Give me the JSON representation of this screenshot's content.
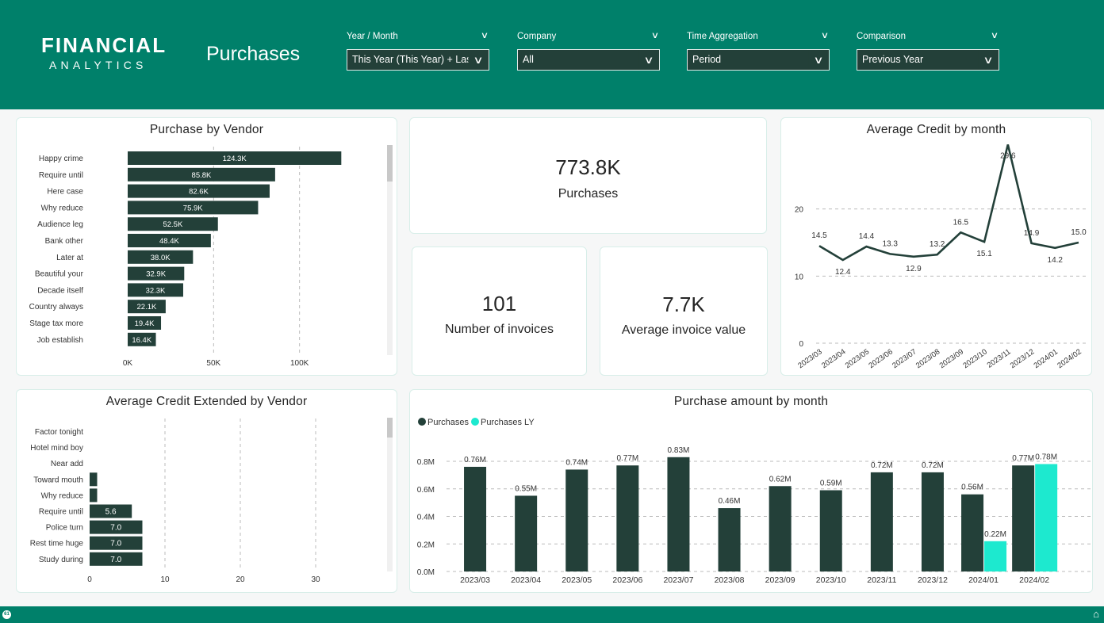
{
  "header": {
    "logo_line1": "FINANCIAL",
    "logo_line2": "ANALYTICS",
    "page_title": "Purchases"
  },
  "slicers": [
    {
      "label": "Year / Month",
      "value": "This Year (This Year) + Las..."
    },
    {
      "label": "Company",
      "value": "All"
    },
    {
      "label": "Time Aggregation",
      "value": "Period"
    },
    {
      "label": "Comparison",
      "value": "Previous Year"
    }
  ],
  "kpis": {
    "purchases": {
      "value": "773.8K",
      "label": "Purchases"
    },
    "invoices": {
      "value": "101",
      "label": "Number of invoices"
    },
    "avg_invoice": {
      "value": "7.7K",
      "label": "Average invoice value"
    }
  },
  "colors": {
    "brand": "#00806a",
    "bar": "#234039",
    "bar_ly": "#1de9cf"
  },
  "footer": {
    "badge": "61",
    "home_icon": "home-icon"
  },
  "chart_data": [
    {
      "id": "purchase_by_vendor",
      "type": "bar",
      "orientation": "horizontal",
      "title": "Purchase by Vendor",
      "categories": [
        "Happy crime",
        "Require until",
        "Here case",
        "Why reduce",
        "Audience leg",
        "Bank other",
        "Later at",
        "Beautiful your",
        "Decade itself",
        "Country always",
        "Stage tax more",
        "Job establish"
      ],
      "values": [
        124300,
        85800,
        82600,
        75900,
        52500,
        48400,
        38000,
        32900,
        32300,
        22100,
        19400,
        16400
      ],
      "value_labels": [
        "124.3K",
        "85.8K",
        "82.6K",
        "75.9K",
        "52.5K",
        "48.4K",
        "38.0K",
        "32.9K",
        "32.3K",
        "22.1K",
        "19.4K",
        "16.4K"
      ],
      "xticks": [
        "0K",
        "50K",
        "100K"
      ],
      "xlim": [
        0,
        150000
      ],
      "grid": true
    },
    {
      "id": "avg_credit_by_month",
      "type": "line",
      "title": "Average Credit by month",
      "x": [
        "2023/03",
        "2023/04",
        "2023/05",
        "2023/06",
        "2023/07",
        "2023/08",
        "2023/09",
        "2023/10",
        "2023/11",
        "2023/12",
        "2024/01",
        "2024/02"
      ],
      "values": [
        14.5,
        12.4,
        14.4,
        13.3,
        12.9,
        13.2,
        16.5,
        15.1,
        29.6,
        14.9,
        14.2,
        15.0
      ],
      "value_labels": [
        "14.5",
        "12.4",
        "14.4",
        "13.3",
        "12.9",
        "13.2",
        "16.5",
        "15.1",
        "29.6",
        "14.9",
        "14.2",
        "15.0"
      ],
      "yticks": [
        "0",
        "10",
        "20"
      ],
      "ylim": [
        0,
        30
      ],
      "grid": true
    },
    {
      "id": "avg_credit_by_vendor",
      "type": "bar",
      "orientation": "horizontal",
      "title": "Average Credit Extended by Vendor",
      "categories": [
        "Factor tonight",
        "Hotel mind boy",
        "Near add",
        "Toward mouth",
        "Why reduce",
        "Require until",
        "Police turn",
        "Rest time huge",
        "Study during"
      ],
      "values": [
        0,
        0,
        0,
        1.0,
        1.0,
        5.6,
        7.0,
        7.0,
        7.0
      ],
      "value_labels": [
        "",
        "",
        "",
        "",
        "",
        "5.6",
        "7.0",
        "7.0",
        "7.0"
      ],
      "xticks": [
        "0",
        "10",
        "20",
        "30"
      ],
      "xlim": [
        0,
        40
      ],
      "grid": true
    },
    {
      "id": "purchase_amount_by_month",
      "type": "bar",
      "title": "Purchase amount by month",
      "categories": [
        "2023/03",
        "2023/04",
        "2023/05",
        "2023/06",
        "2023/07",
        "2023/08",
        "2023/09",
        "2023/10",
        "2023/11",
        "2023/12",
        "2024/01",
        "2024/02"
      ],
      "series": [
        {
          "name": "Purchases",
          "values": [
            0.76,
            0.55,
            0.74,
            0.77,
            0.83,
            0.46,
            0.62,
            0.59,
            0.72,
            0.72,
            0.56,
            0.77
          ],
          "labels": [
            "0.76M",
            "0.55M",
            "0.74M",
            "0.77M",
            "0.83M",
            "0.46M",
            "0.62M",
            "0.59M",
            "0.72M",
            "0.72M",
            "0.56M",
            "0.77M"
          ]
        },
        {
          "name": "Purchases LY",
          "values": [
            null,
            null,
            null,
            null,
            null,
            null,
            null,
            null,
            null,
            null,
            0.22,
            0.78
          ],
          "labels": [
            "",
            "",
            "",
            "",
            "",
            "",
            "",
            "",
            "",
            "",
            "0.22M",
            "0.78M"
          ]
        }
      ],
      "yticks": [
        "0.0M",
        "0.2M",
        "0.4M",
        "0.6M",
        "0.8M"
      ],
      "ylim": [
        0,
        0.8
      ],
      "legend": "top-left",
      "grid": true
    }
  ]
}
